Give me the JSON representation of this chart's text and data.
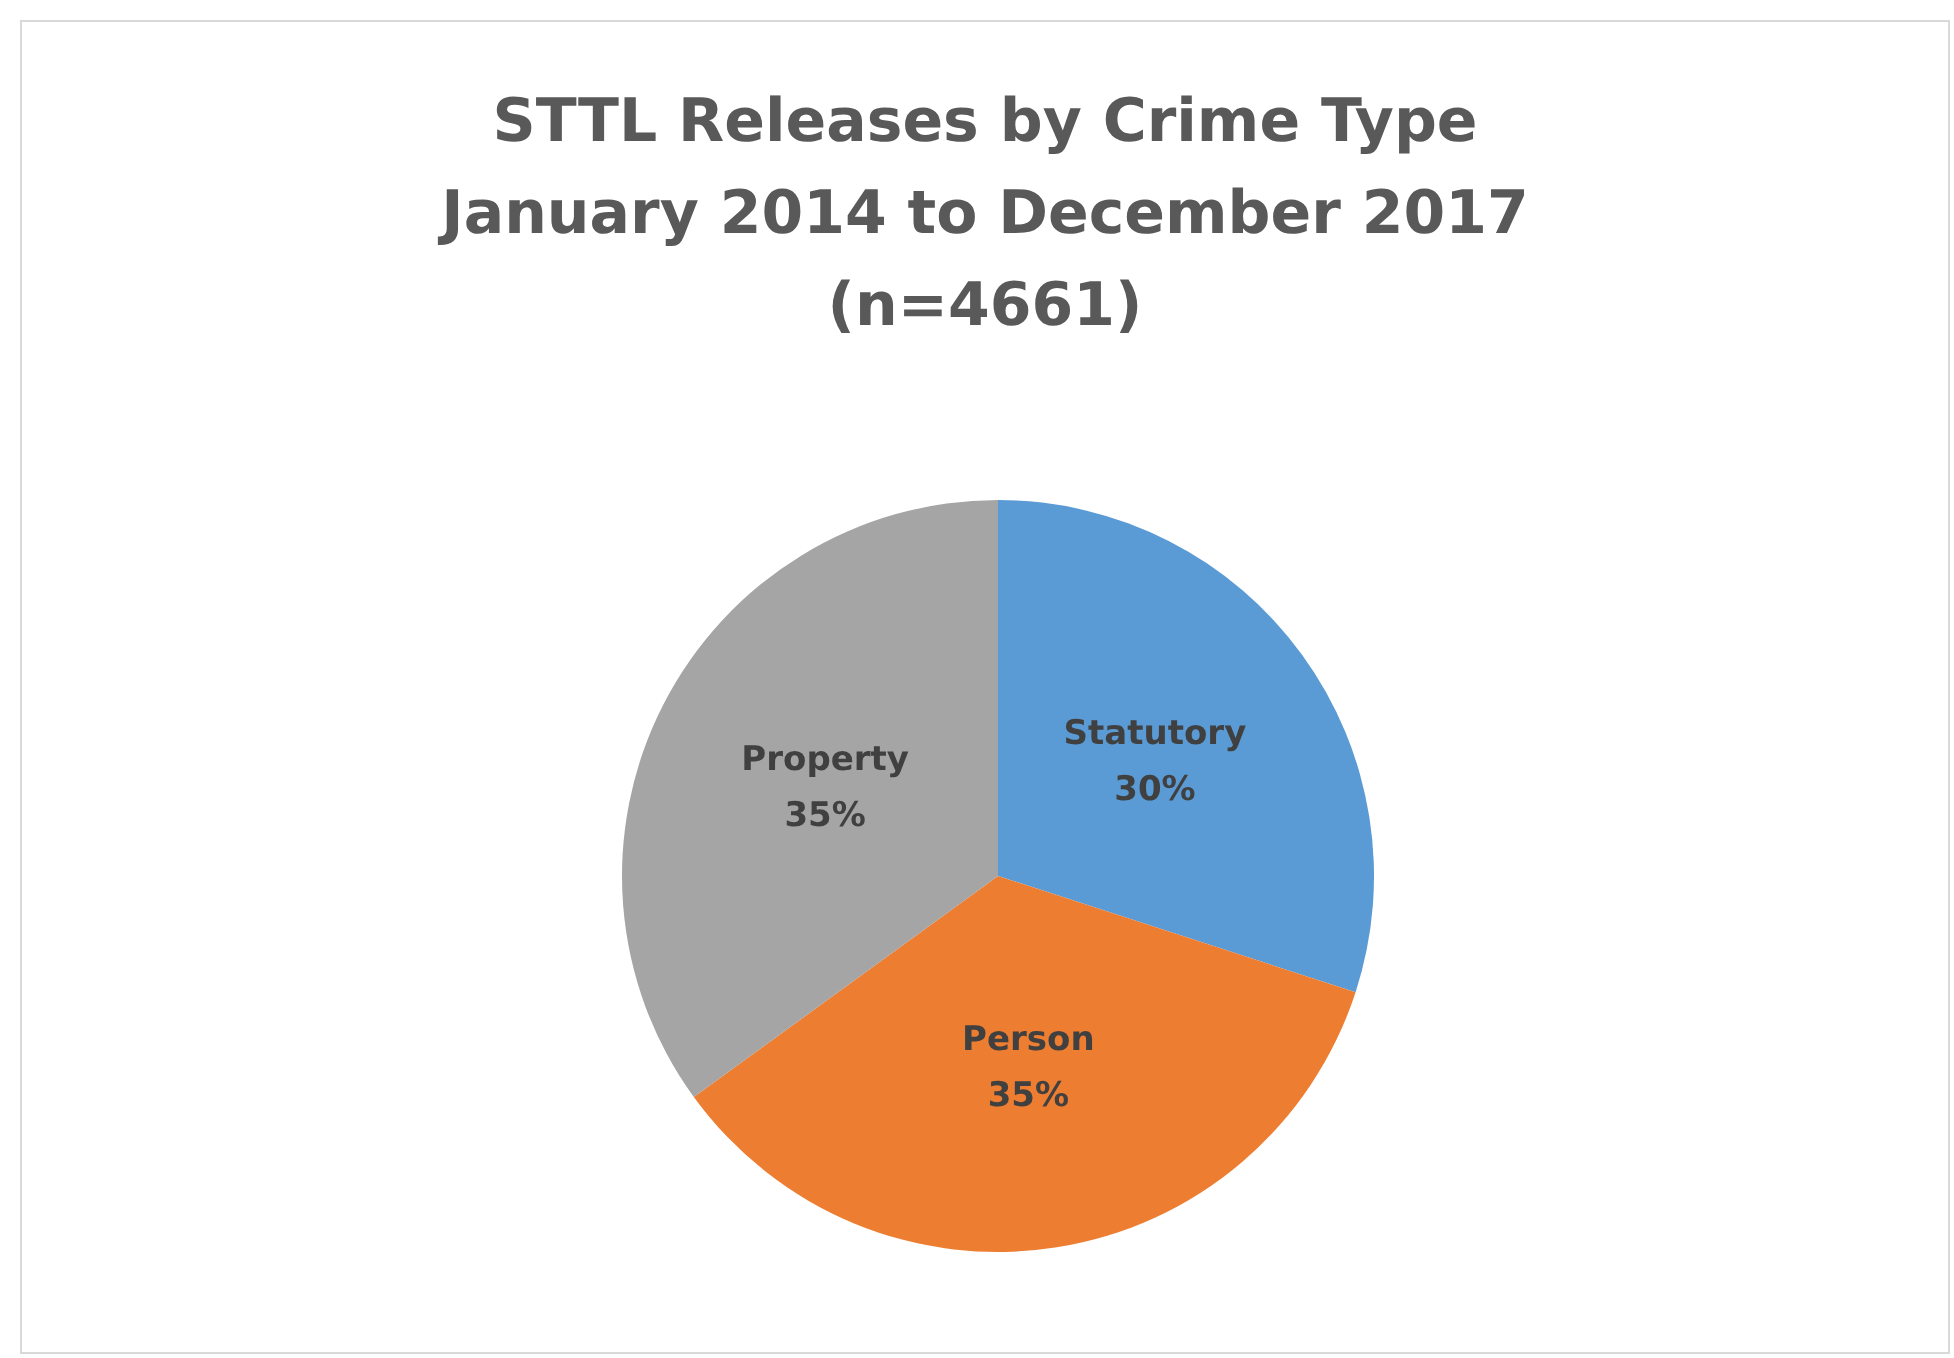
{
  "chart_data": {
    "type": "pie",
    "title": "STTL Releases by Crime Type\nJanuary 2014 to December 2017\n(n=4661)",
    "categories": [
      "Statutory",
      "Person",
      "Property"
    ],
    "values": [
      30,
      35,
      35
    ],
    "colors": [
      "#5b9bd5",
      "#ed7d31",
      "#a5a5a5"
    ],
    "value_labels": [
      "30%",
      "35%",
      "35%"
    ],
    "legend": false
  }
}
